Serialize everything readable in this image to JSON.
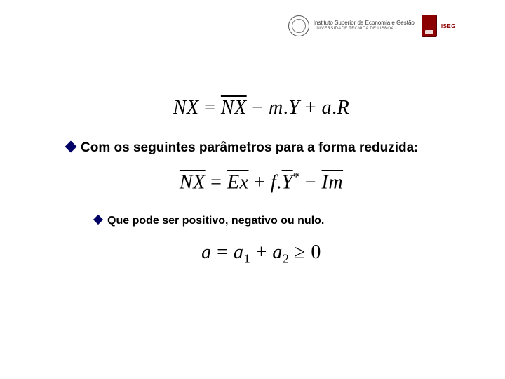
{
  "header": {
    "institution_line1": "Instituto Superior de Economia e Gestão",
    "institution_line2": "UNIVERSIDADE TÉCNICA DE LISBOA",
    "iseg_label": "ISEG"
  },
  "equations": {
    "eq1": {
      "lhs": "NX",
      "rhs_bar": "NX",
      "term2_coef": "m",
      "term2_var": "Y",
      "term3_coef": "a",
      "term3_var": "R"
    },
    "eq2": {
      "lhs_bar": "NX",
      "t1_bar": "Ex",
      "t2_coef": "f",
      "t2_bar": "Y",
      "t2_sup": "*",
      "t3_bar": "Im"
    },
    "eq3": {
      "lhs": "a",
      "a1": "a",
      "a1_sub": "1",
      "a2": "a",
      "a2_sub": "2",
      "rel": "≥",
      "zero": "0"
    }
  },
  "bullets": {
    "b1": "Com os seguintes parâmetros para a forma reduzida:",
    "b2": "Que pode ser positivo, negativo ou nulo."
  },
  "colors": {
    "diamond": "#000066",
    "iseg_red": "#8b0000",
    "text": "#000000",
    "bg": "#ffffff",
    "rule": "#888888"
  }
}
